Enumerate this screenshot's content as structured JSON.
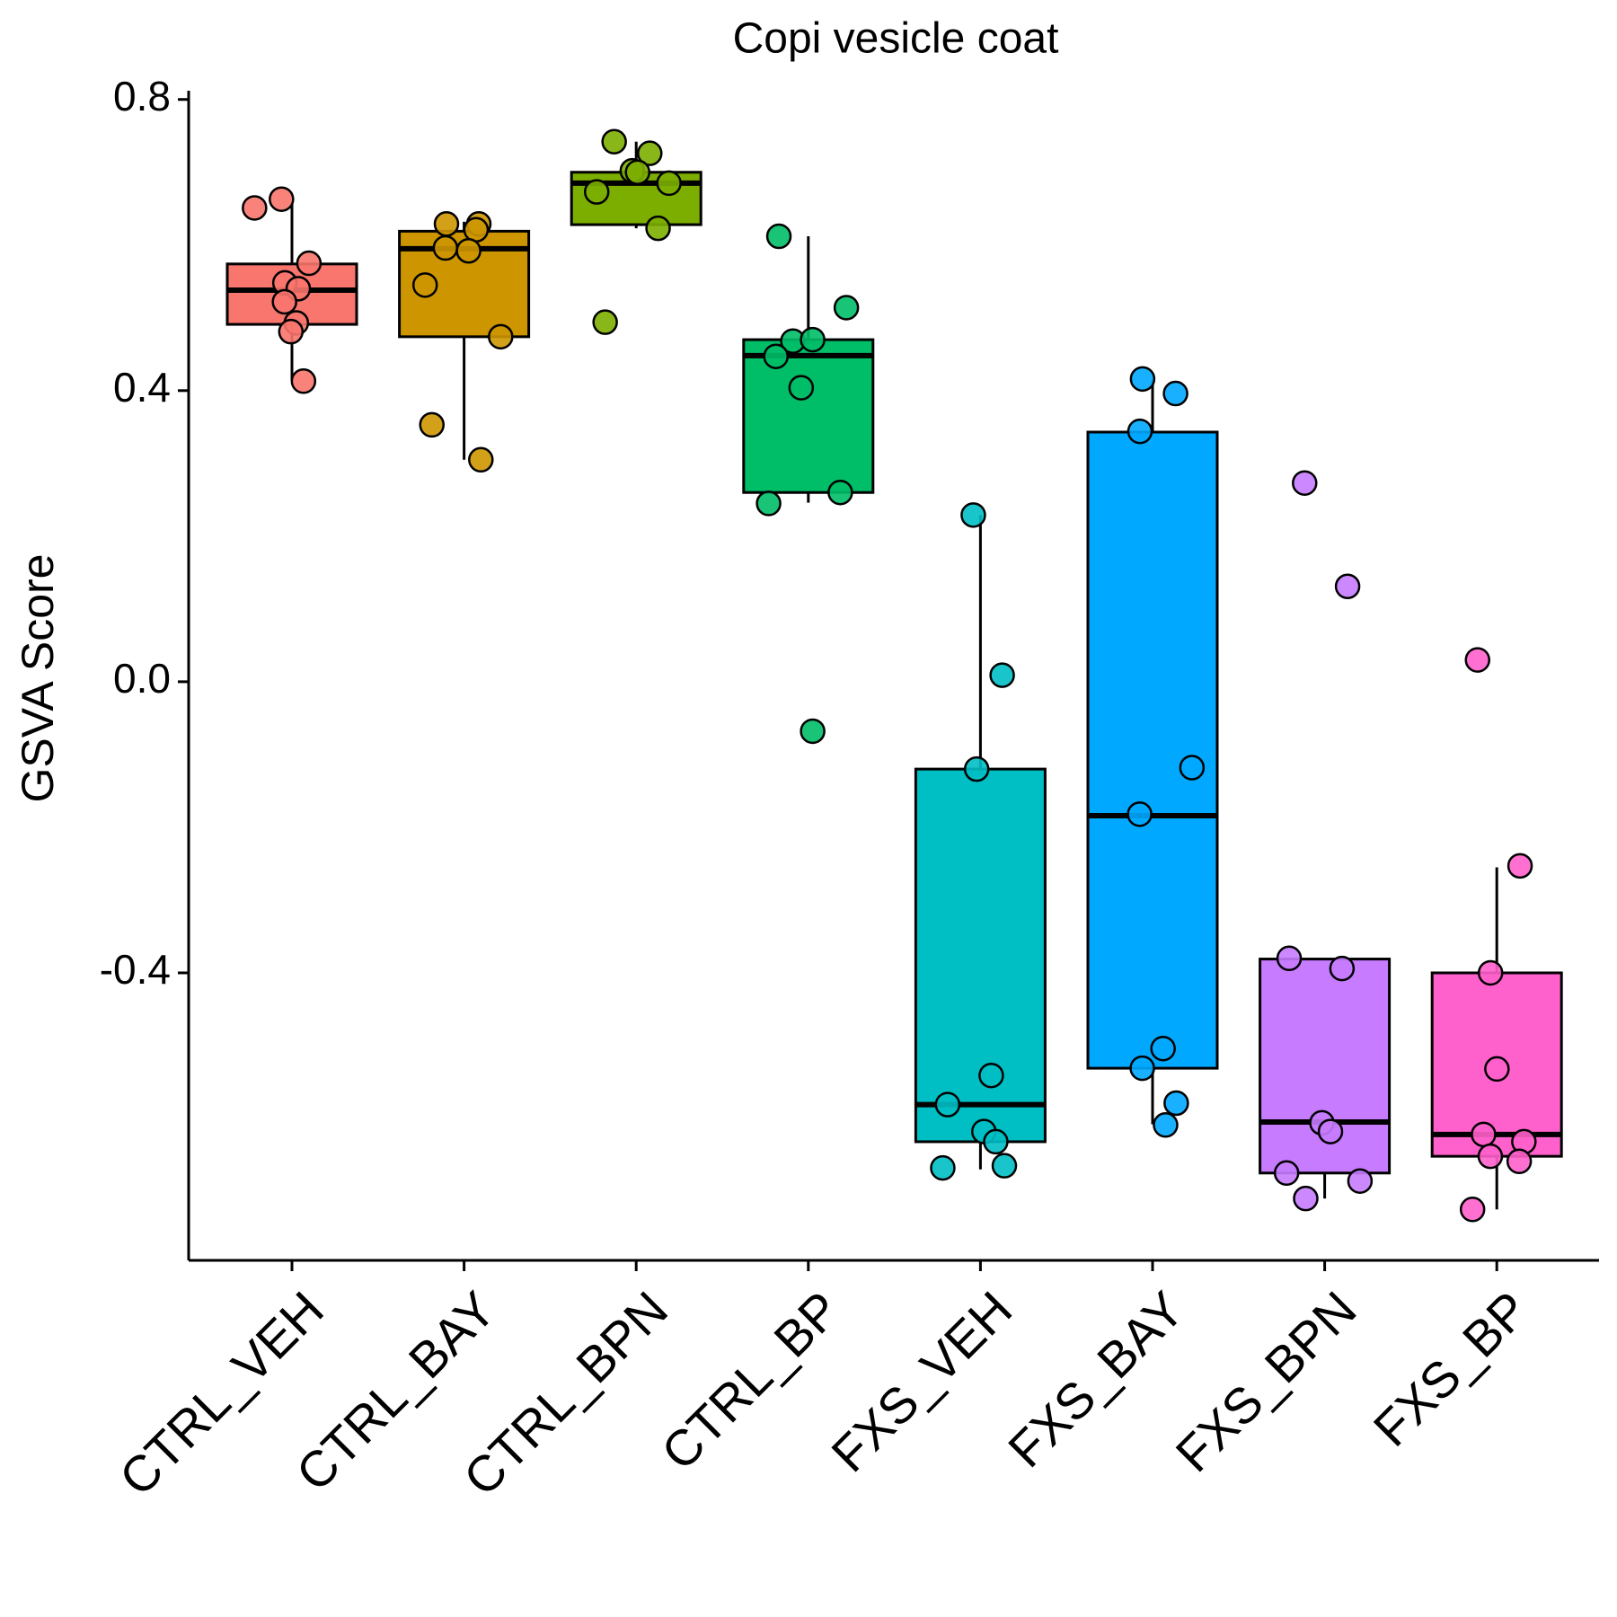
{
  "chart_data": {
    "type": "box",
    "title": "Copi vesicle coat",
    "y_label": "GSVA Score",
    "categories": [
      "CTRL_VEH",
      "CTRL_BAY",
      "CTRL_BPN",
      "CTRL_BP",
      "FXS_VEH",
      "FXS_BAY",
      "FXS_BPN",
      "FXS_BP"
    ],
    "ylim": [
      -0.795,
      0.812
    ],
    "yticks": [
      {
        "value": -0.4,
        "label": "-0.4"
      },
      {
        "value": 0,
        "label": "0.0"
      },
      0.4,
      0.8
    ],
    "boxes": [
      {
        "color": "#F8766D",
        "whisker_low": 0.414,
        "q1": 0.491,
        "median": 0.538,
        "q3": 0.574,
        "whisker_high": 0.658,
        "points": [
          0.663,
          0.651,
          0.575,
          0.548,
          0.54,
          0.522,
          0.493,
          0.481,
          0.413
        ]
      },
      {
        "color": "#CD9600",
        "whisker_low": 0.305,
        "q1": 0.474,
        "median": 0.595,
        "q3": 0.619,
        "whisker_high": 0.632,
        "points": [
          0.629,
          0.629,
          0.621,
          0.596,
          0.592,
          0.545,
          0.474,
          0.353,
          0.305
        ]
      },
      {
        "color": "#7CAE00",
        "whisker_low": 0.623,
        "q1": 0.628,
        "median": 0.685,
        "q3": 0.7,
        "whisker_high": 0.742,
        "points": [
          0.742,
          0.726,
          0.702,
          0.7,
          0.685,
          0.673,
          0.623,
          0.494
        ]
      },
      {
        "color": "#00BE67",
        "whisker_low": 0.246,
        "q1": 0.26,
        "median": 0.448,
        "q3": 0.47,
        "whisker_high": 0.612,
        "points": [
          0.612,
          0.514,
          0.468,
          0.47,
          0.447,
          0.404,
          0.26,
          0.245,
          -0.068
        ]
      },
      {
        "color": "#00BFC4",
        "whisker_low": -0.67,
        "q1": -0.632,
        "median": -0.581,
        "q3": -0.12,
        "whisker_high": 0.229,
        "points": [
          0.229,
          0.009,
          -0.12,
          -0.541,
          -0.581,
          -0.618,
          -0.632,
          -0.668,
          -0.665
        ]
      },
      {
        "color": "#00A9FF",
        "whisker_low": -0.608,
        "q1": -0.531,
        "median": -0.184,
        "q3": 0.343,
        "whisker_high": 0.414,
        "points": [
          0.416,
          0.396,
          0.344,
          -0.118,
          -0.182,
          -0.504,
          -0.531,
          -0.579,
          -0.609
        ]
      },
      {
        "color": "#C77CFF",
        "whisker_low": -0.71,
        "q1": -0.675,
        "median": -0.605,
        "q3": -0.381,
        "whisker_high": -0.381,
        "points": [
          0.273,
          0.131,
          -0.38,
          -0.394,
          -0.606,
          -0.618,
          -0.675,
          -0.686,
          -0.71
        ]
      },
      {
        "color": "#FF61CC",
        "whisker_low": -0.725,
        "q1": -0.652,
        "median": -0.622,
        "q3": -0.4,
        "whisker_high": -0.255,
        "points": [
          0.03,
          -0.253,
          -0.4,
          -0.532,
          -0.622,
          -0.632,
          -0.652,
          -0.659,
          -0.725
        ]
      }
    ]
  }
}
